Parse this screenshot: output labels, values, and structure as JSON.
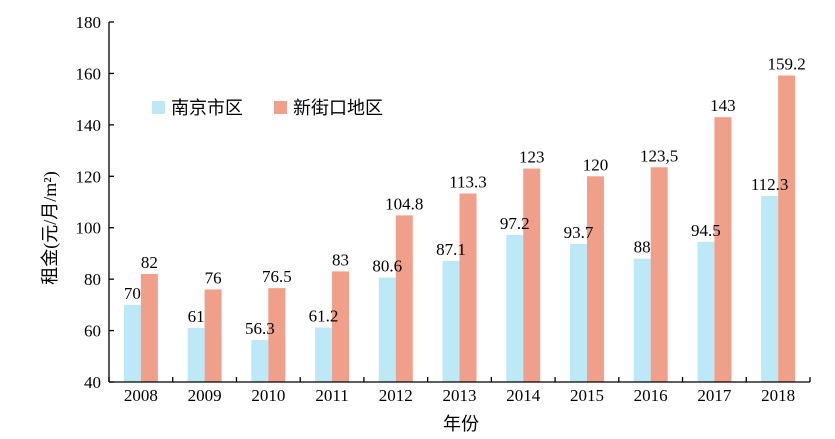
{
  "chart_data": {
    "type": "bar",
    "categories": [
      "2008",
      "2009",
      "2010",
      "2011",
      "2012",
      "2013",
      "2014",
      "2015",
      "2016",
      "2017",
      "2018"
    ],
    "series": [
      {
        "name": "南京市区",
        "color": "#bde9f6",
        "values": [
          70,
          61,
          56.3,
          61.2,
          80.6,
          87.1,
          97.2,
          93.7,
          88,
          94.5,
          112.3
        ],
        "labels": [
          "70",
          "61",
          "56.3",
          "61.2",
          "80.6",
          "87.1",
          "97.2",
          "93.7",
          "88",
          "94.5",
          "112.3"
        ]
      },
      {
        "name": "新街口地区",
        "color": "#f0a08a",
        "values": [
          82,
          76,
          76.5,
          83,
          104.8,
          113.3,
          123,
          120,
          123.5,
          143,
          159.2
        ],
        "labels": [
          "82",
          "76",
          "76.5",
          "83",
          "104.8",
          "113.3",
          "123",
          "120",
          "123,5",
          "143",
          "159.2"
        ]
      }
    ],
    "xlabel": "年份",
    "ylabel": "租金(元/月/m²)",
    "ylim": [
      40,
      180
    ],
    "yticks": [
      "40",
      "60",
      "80",
      "100",
      "120",
      "140",
      "160",
      "180"
    ],
    "grid": false,
    "legend_position": "top-left"
  }
}
